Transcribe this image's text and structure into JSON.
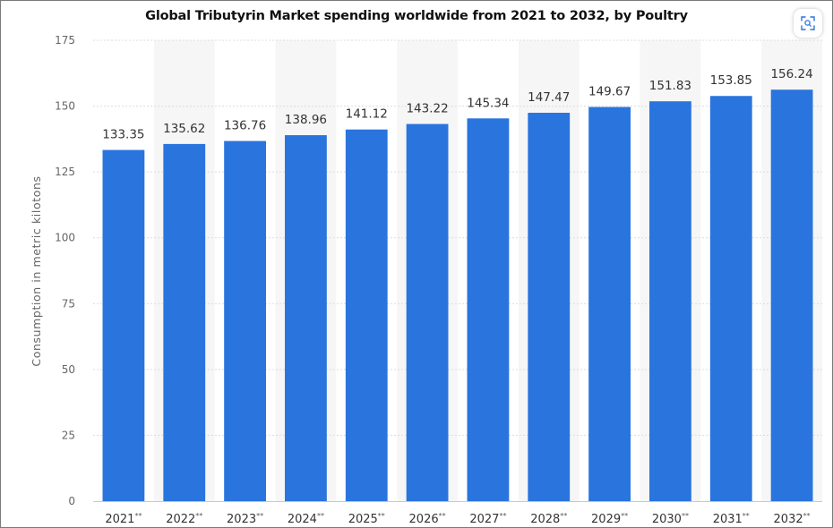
{
  "chart_data": {
    "type": "bar",
    "title": "Global Tributyrin Market spending worldwide from 2021 to 2032, by Poultry",
    "ylabel": "Consumption in metric kilotons",
    "xlabel": "",
    "categories": [
      "2021",
      "2022",
      "2023",
      "2024",
      "2025",
      "2026",
      "2027",
      "2028",
      "2029",
      "2030",
      "2031",
      "2032"
    ],
    "category_suffix": "**",
    "values": [
      133.35,
      135.62,
      136.76,
      138.96,
      141.12,
      143.22,
      145.34,
      147.47,
      149.67,
      151.83,
      153.85,
      156.24
    ],
    "value_labels": [
      "133.35",
      "135.62",
      "136.76",
      "138.96",
      "141.12",
      "143.22",
      "145.34",
      "147.47",
      "149.67",
      "151.83",
      "153.85",
      "156.24"
    ],
    "ylim": [
      0,
      175
    ],
    "yticks": [
      0,
      25,
      50,
      75,
      100,
      125,
      150,
      175
    ],
    "grid": true,
    "bar_color": "#2a74de",
    "band_color": "#f6f6f6"
  },
  "toolbar": {
    "zoom_icon": "zoom-icon"
  }
}
